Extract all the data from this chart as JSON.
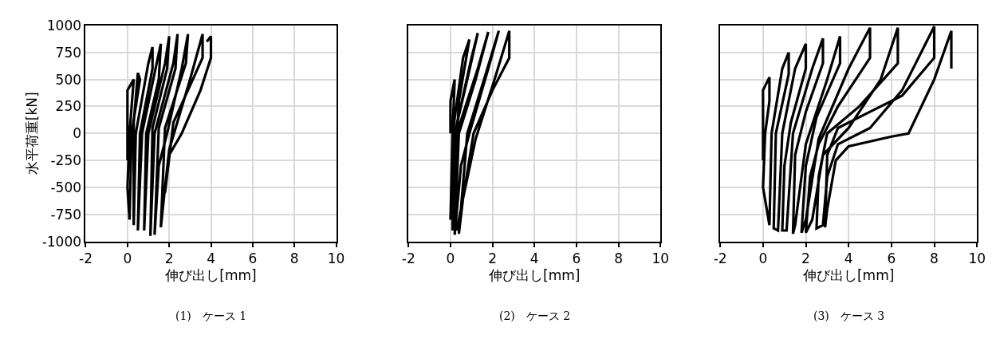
{
  "chart_data": [
    {
      "type": "line",
      "xlabel": "伸び出し[mm]",
      "ylabel": "水平荷重[kN]",
      "annotations": [
        "(1)　ケース 1"
      ],
      "xlim": [
        -2,
        10
      ],
      "xticks": [
        -2,
        0,
        2,
        4,
        6,
        8,
        10
      ],
      "ylim": [
        -1000,
        1000
      ],
      "yticks": [
        -1000,
        -750,
        -500,
        -250,
        0,
        250,
        500,
        750,
        1000
      ],
      "grid": true,
      "marker": "none",
      "line_style": "solid",
      "series": [
        {
          "color": "#000000",
          "x": [
            0,
            0,
            0.3,
            0.1,
            0,
            0.1,
            0.2,
            0.6,
            0.5,
            0.3,
            0.3,
            0.4,
            1.0,
            1.2,
            1.2,
            0.6,
            0.5,
            0.7,
            1.4,
            1.6,
            1.5,
            0.9,
            0.8,
            1.0,
            1.8,
            2.0,
            1.9,
            1.2,
            1.1,
            1.3,
            2.2,
            2.4,
            2.3,
            1.5,
            1.3,
            1.5,
            1.9,
            2.6,
            2.9,
            2.8,
            1.8,
            1.6,
            1.8,
            2.0,
            3.0,
            3.6,
            3.6,
            2.2,
            1.8,
            2.0,
            2.6,
            3.5,
            4.0,
            4.0,
            3.8
          ],
          "values": [
            -250,
            400,
            500,
            0,
            -500,
            -800,
            0,
            500,
            560,
            100,
            -850,
            0,
            650,
            800,
            600,
            0,
            -900,
            0,
            650,
            830,
            500,
            0,
            -900,
            0,
            650,
            900,
            600,
            50,
            -950,
            0,
            650,
            920,
            600,
            50,
            -940,
            -300,
            0,
            600,
            920,
            650,
            50,
            -870,
            -500,
            -150,
            500,
            920,
            700,
            100,
            -550,
            -200,
            0,
            400,
            700,
            900,
            850
          ]
        }
      ]
    },
    {
      "type": "line",
      "xlabel": "伸び出し[mm]",
      "annotations": [
        "(2)　ケース 2"
      ],
      "xlim": [
        -2,
        10
      ],
      "xticks": [
        -2,
        0,
        2,
        4,
        6,
        8,
        10
      ],
      "ylim": [
        -1000,
        1000
      ],
      "yticks": [
        -1000,
        -750,
        -500,
        -250,
        0,
        250,
        500,
        750,
        1000
      ],
      "tick_labels": "x",
      "grid": true,
      "marker": "none",
      "line_style": "solid",
      "series": [
        {
          "color": "#000000",
          "x": [
            0,
            0,
            0.2,
            0.1,
            0,
            0.1,
            0.6,
            0.9,
            0.4,
            0.1,
            0.2,
            1.0,
            1.3,
            0.8,
            0.2,
            0.1,
            0.3,
            1.3,
            1.8,
            1.2,
            0.4,
            0.2,
            0.5,
            0.9,
            1.8,
            2.3,
            1.6,
            0.8,
            0.4,
            0.6,
            1.2,
            2.1,
            2.8,
            2.8,
            2.0,
            1.1,
            0.6,
            0.3
          ],
          "values": [
            0,
            300,
            500,
            0,
            -800,
            0,
            700,
            870,
            300,
            -850,
            0,
            700,
            930,
            500,
            0,
            -900,
            0,
            600,
            940,
            500,
            0,
            -940,
            -300,
            0,
            600,
            950,
            500,
            0,
            -930,
            -600,
            -50,
            500,
            950,
            700,
            400,
            0,
            -600,
            -900
          ]
        }
      ]
    },
    {
      "type": "line",
      "xlabel": "伸び出し[mm]",
      "annotations": [
        "(3)　ケース 3"
      ],
      "xlim": [
        -2,
        10
      ],
      "xticks": [
        -2,
        0,
        2,
        4,
        6,
        8,
        10
      ],
      "ylim": [
        -1000,
        1000
      ],
      "yticks": [
        -1000,
        -750,
        -500,
        -250,
        0,
        250,
        500,
        750,
        1000
      ],
      "tick_labels": "x",
      "grid": true,
      "marker": "none",
      "line_style": "solid",
      "series": [
        {
          "color": "#000000",
          "x": [
            0,
            0,
            0.3,
            0.3,
            0.1,
            0,
            0.3,
            0.4,
            0.9,
            1.2,
            1.2,
            0.6,
            0.5,
            0.7,
            0.9,
            1.5,
            2.0,
            2.0,
            1.3,
            1.0,
            0.9,
            1.1,
            1.4,
            2.3,
            2.8,
            2.8,
            2.0,
            1.5,
            1.4,
            1.5,
            2.0,
            3.0,
            3.6,
            3.6,
            2.5,
            2.0,
            1.8,
            2.0,
            2.6,
            4.0,
            5.0,
            5.0,
            3.5,
            2.6,
            2.2,
            2.0,
            2.3,
            2.8,
            4.0,
            5.5,
            6.3,
            6.3,
            4.5,
            3.0,
            2.6,
            2.5,
            2.8,
            3.0,
            3.5,
            5.0,
            6.5,
            8.0,
            8.0,
            6.5,
            5.0,
            3.5,
            3.0,
            2.9,
            3.0,
            3.4,
            4.0,
            6.0,
            6.8,
            8.0,
            8.8,
            8.8,
            8.8
          ],
          "values": [
            -250,
            400,
            520,
            300,
            0,
            -500,
            -850,
            0,
            600,
            750,
            550,
            0,
            -880,
            -900,
            0,
            600,
            830,
            600,
            100,
            -300,
            -900,
            -900,
            0,
            600,
            880,
            650,
            200,
            -200,
            -930,
            -850,
            -100,
            500,
            900,
            650,
            150,
            -300,
            -920,
            -800,
            -50,
            600,
            980,
            700,
            250,
            -100,
            -400,
            -920,
            -800,
            -200,
            50,
            500,
            980,
            650,
            250,
            0,
            -400,
            -880,
            -850,
            -400,
            -100,
            50,
            400,
            990,
            700,
            350,
            200,
            50,
            -200,
            -870,
            -700,
            -250,
            -120,
            -30,
            0,
            500,
            950,
            800,
            600
          ]
        }
      ]
    }
  ]
}
